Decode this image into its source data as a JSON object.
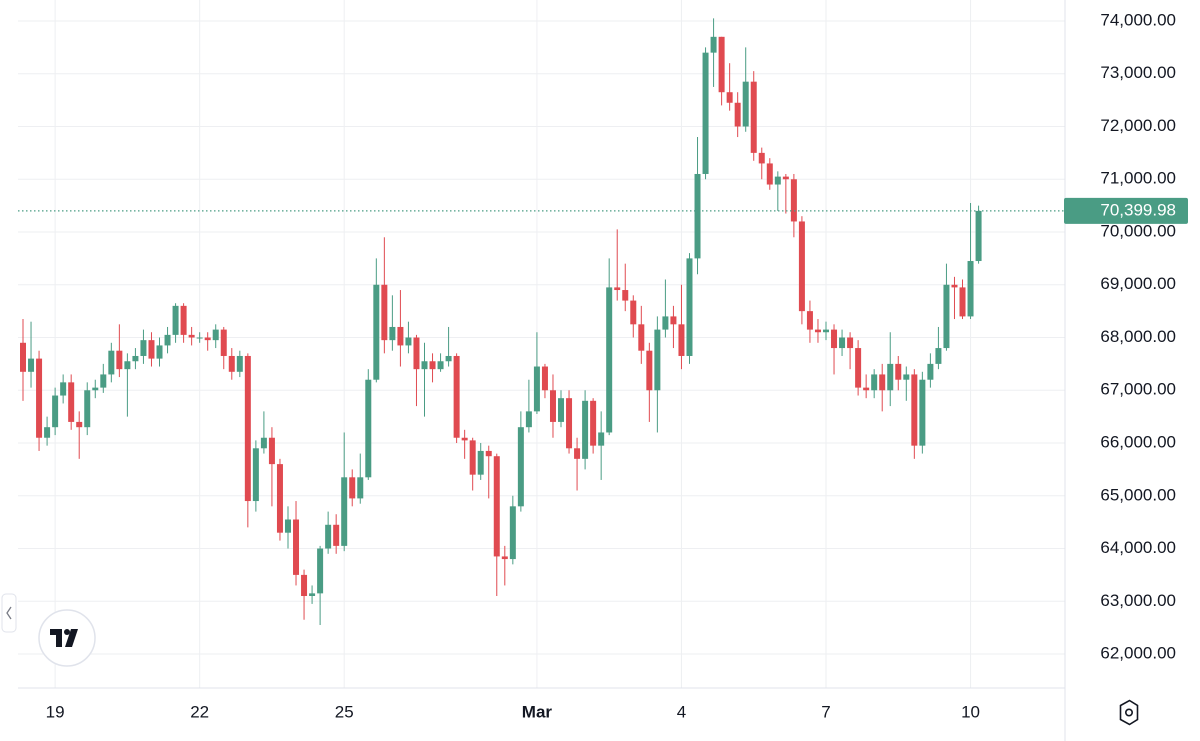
{
  "chart_data": {
    "type": "candlestick",
    "categories": [
      null,
      null,
      null,
      null,
      "19",
      null,
      null,
      null,
      null,
      null,
      null,
      null,
      null,
      null,
      null,
      null,
      null,
      null,
      null,
      null,
      null,
      null,
      "22",
      null,
      null,
      null,
      null,
      null,
      null,
      null,
      null,
      null,
      null,
      null,
      null,
      null,
      null,
      null,
      null,
      null,
      "25",
      null,
      null,
      null,
      null,
      null,
      null,
      null,
      null,
      null,
      null,
      null,
      null,
      null,
      null,
      null,
      null,
      null,
      null,
      null,
      null,
      null,
      null,
      null,
      "Mar",
      null,
      null,
      null,
      null,
      null,
      null,
      null,
      null,
      null,
      null,
      null,
      null,
      null,
      null,
      null,
      null,
      null,
      "4",
      null,
      null,
      null,
      null,
      null,
      null,
      null,
      null,
      null,
      null,
      null,
      null,
      null,
      null,
      null,
      null,
      null,
      "7",
      null,
      null,
      null,
      null,
      null,
      null,
      null,
      null,
      null,
      null,
      null,
      null,
      null,
      null,
      null,
      null,
      null,
      "10",
      null
    ],
    "open": [
      67900,
      67350,
      67600,
      66100,
      66300,
      66900,
      67150,
      66400,
      66300,
      67000,
      67050,
      67300,
      67750,
      67400,
      67550,
      67650,
      67950,
      67600,
      67850,
      68050,
      68600,
      68050,
      68000,
      68000,
      67950,
      68150,
      67650,
      67350,
      67650,
      64900,
      65900,
      66100,
      65600,
      64300,
      64550,
      63500,
      63100,
      63150,
      64000,
      64450,
      64050,
      65350,
      64950,
      65350,
      67200,
      69000,
      67950,
      68200,
      67850,
      68000,
      67400,
      67550,
      67400,
      67550,
      67650,
      66100,
      66050,
      65400,
      65850,
      65750,
      63850,
      63800,
      64800,
      66300,
      66600,
      67450,
      67000,
      66400,
      66850,
      65900,
      65700,
      66800,
      65950,
      66200,
      68950,
      68900,
      68700,
      68250,
      67750,
      67000,
      68150,
      68400,
      68250,
      67650,
      69500,
      71100,
      73400,
      73700,
      72650,
      72450,
      72000,
      72850,
      71500,
      71300,
      70900,
      71050,
      71000,
      70200,
      68500,
      68150,
      68100,
      68150,
      67800,
      68000,
      67800,
      67050,
      67000,
      67300,
      67000,
      67500,
      67200,
      67300,
      65950,
      67200,
      67500,
      67800,
      69000,
      68950,
      68400,
      69450
    ],
    "high": [
      68350,
      68300,
      67750,
      66500,
      67050,
      67300,
      67300,
      66600,
      67150,
      67200,
      67500,
      67900,
      68250,
      67700,
      67800,
      68150,
      68100,
      68000,
      68200,
      68650,
      68650,
      68200,
      68100,
      68100,
      68250,
      68200,
      67800,
      67750,
      67700,
      66050,
      66600,
      66300,
      65700,
      64800,
      64900,
      63600,
      63300,
      64050,
      64700,
      64650,
      66200,
      65500,
      65800,
      67400,
      69500,
      69900,
      68800,
      68900,
      68300,
      68050,
      67900,
      67700,
      67700,
      68200,
      67700,
      66250,
      66100,
      66000,
      65950,
      65800,
      64050,
      65000,
      66600,
      67200,
      68100,
      67500,
      67300,
      67000,
      67000,
      66100,
      67000,
      66850,
      66600,
      69500,
      70050,
      69400,
      68800,
      68600,
      67900,
      68400,
      69100,
      68600,
      69000,
      69600,
      71800,
      73500,
      74050,
      73700,
      73200,
      72650,
      73500,
      73050,
      71600,
      71400,
      71150,
      71100,
      71100,
      70300,
      68700,
      68350,
      68300,
      68250,
      68150,
      68100,
      67950,
      67300,
      67400,
      67500,
      68100,
      67650,
      67450,
      67400,
      67350,
      67700,
      68200,
      69400,
      69150,
      69100,
      70550,
      70500
    ],
    "low": [
      66800,
      67050,
      65850,
      65950,
      66150,
      66750,
      66250,
      65700,
      66150,
      66850,
      66950,
      67150,
      67250,
      66500,
      67400,
      67500,
      67450,
      67450,
      67700,
      67900,
      67900,
      67850,
      67900,
      67750,
      67800,
      67400,
      67200,
      67250,
      64400,
      64700,
      65800,
      64800,
      64150,
      64000,
      63300,
      62650,
      62950,
      62550,
      63900,
      63900,
      63950,
      64800,
      64850,
      65300,
      67150,
      67700,
      67750,
      67450,
      67700,
      66700,
      66500,
      67150,
      67350,
      67450,
      66000,
      65700,
      65100,
      65300,
      64950,
      63100,
      63300,
      63700,
      64700,
      66200,
      66550,
      66850,
      66100,
      66300,
      65800,
      65100,
      65500,
      65800,
      65300,
      66150,
      68700,
      68500,
      68000,
      67500,
      66400,
      66200,
      68000,
      67800,
      67400,
      67500,
      69200,
      71000,
      72750,
      72400,
      72300,
      71800,
      71900,
      71350,
      71000,
      70800,
      70400,
      70350,
      69900,
      68250,
      67900,
      67900,
      67950,
      67300,
      67650,
      67400,
      66900,
      66850,
      66850,
      66600,
      66700,
      67000,
      66800,
      65700,
      65800,
      67050,
      67400,
      67750,
      68350,
      68350,
      68350,
      69400
    ],
    "close": [
      67350,
      67600,
      66100,
      66300,
      66900,
      67150,
      66400,
      66300,
      67000,
      67050,
      67300,
      67750,
      67400,
      67550,
      67650,
      67950,
      67600,
      67850,
      68050,
      68600,
      68050,
      68000,
      68000,
      67950,
      68150,
      67650,
      67350,
      67650,
      64900,
      65900,
      66100,
      65600,
      64300,
      64550,
      63500,
      63100,
      63150,
      64000,
      64450,
      64050,
      65350,
      64950,
      65350,
      67200,
      69000,
      67950,
      68200,
      67850,
      68000,
      67400,
      67550,
      67400,
      67550,
      67650,
      66100,
      66050,
      65400,
      65850,
      65750,
      63850,
      63800,
      64800,
      66300,
      66600,
      67450,
      67000,
      66400,
      66850,
      65900,
      65700,
      66800,
      65950,
      66200,
      68950,
      68900,
      68700,
      68250,
      67750,
      67000,
      68150,
      68400,
      68250,
      67650,
      69500,
      71100,
      73400,
      73700,
      72650,
      72450,
      72000,
      72850,
      71500,
      71300,
      70900,
      71050,
      71000,
      70200,
      68500,
      68150,
      68100,
      68150,
      67800,
      68000,
      67800,
      67050,
      67000,
      67300,
      67000,
      67500,
      67200,
      67300,
      65950,
      67200,
      67500,
      67800,
      69000,
      68950,
      68400,
      69450,
      70399.98
    ],
    "up_color": "#4a9c84",
    "down_color": "#e04a50",
    "ylim": [
      61356,
      74398
    ],
    "yticks": [
      {
        "value": 62000,
        "label": "62,000.00"
      },
      {
        "value": 63000,
        "label": "63,000.00"
      },
      {
        "value": 64000,
        "label": "64,000.00"
      },
      {
        "value": 65000,
        "label": "65,000.00"
      },
      {
        "value": 66000,
        "label": "66,000.00"
      },
      {
        "value": 67000,
        "label": "67,000.00"
      },
      {
        "value": 68000,
        "label": "68,000.00"
      },
      {
        "value": 69000,
        "label": "69,000.00"
      },
      {
        "value": 70000,
        "label": "70,000.00"
      },
      {
        "value": 71000,
        "label": "71,000.00"
      },
      {
        "value": 72000,
        "label": "72,000.00"
      },
      {
        "value": 73000,
        "label": "73,000.00"
      },
      {
        "value": 74000,
        "label": "74,000.00"
      }
    ],
    "grid": true,
    "price_line": {
      "value": 70399.98,
      "label": "70,399.98"
    }
  }
}
